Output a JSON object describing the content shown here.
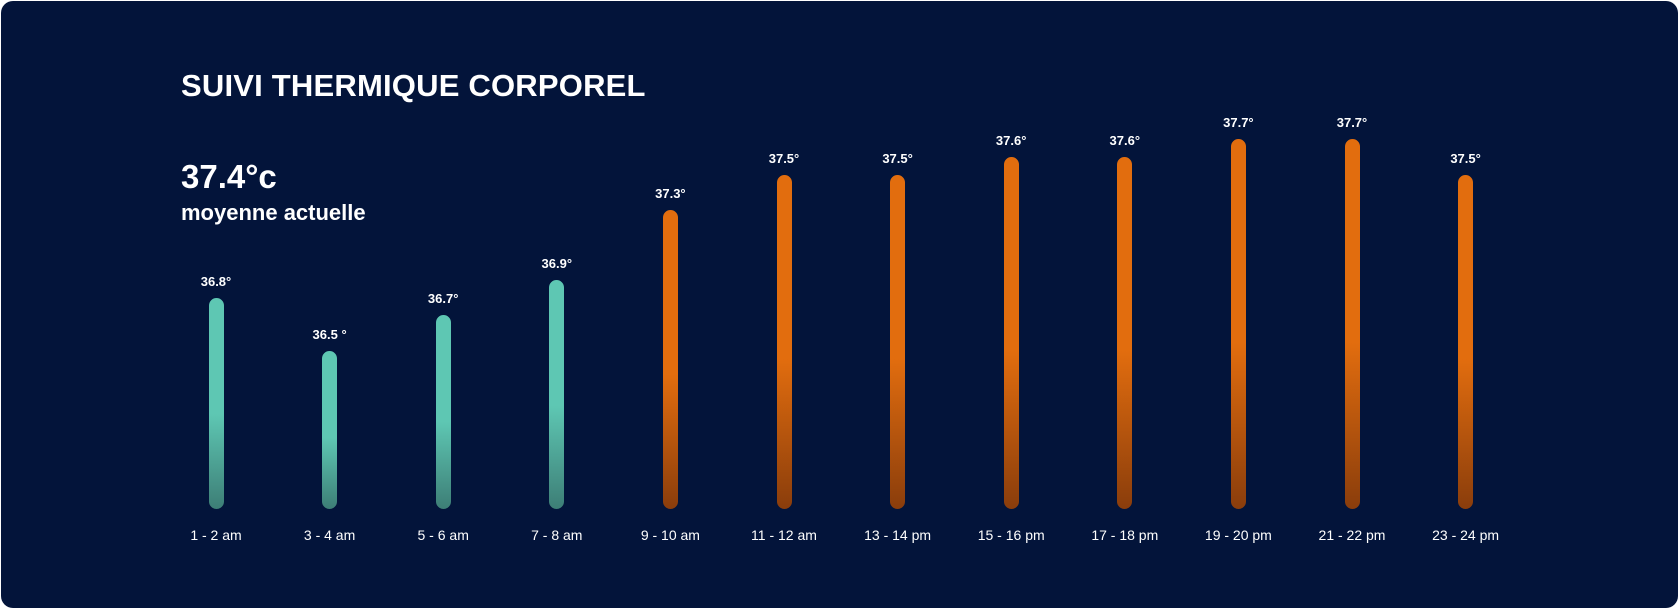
{
  "header": {
    "title": "SUIVI THERMIQUE CORPOREL",
    "average_value": "37.4°c",
    "average_label": "moyenne actuelle"
  },
  "colors": {
    "background": "#03143a",
    "cool": "#5ec7b3",
    "warm": "#e26d0e"
  },
  "chart_data": {
    "type": "bar",
    "title": "SUIVI THERMIQUE CORPOREL",
    "xlabel": "",
    "ylabel": "",
    "ylim": [
      35.6,
      37.7
    ],
    "grid": false,
    "categories": [
      "1 - 2 am",
      "3 - 4 am",
      "5 - 6 am",
      "7 - 8 am",
      "9 - 10 am",
      "11 - 12 am",
      "13 - 14 pm",
      "15 - 16 pm",
      "17 - 18 pm",
      "19 - 20 pm",
      "21 - 22 pm",
      "23 - 24 pm"
    ],
    "values": [
      36.8,
      36.5,
      36.7,
      36.9,
      37.3,
      37.5,
      37.5,
      37.6,
      37.6,
      37.7,
      37.7,
      37.5
    ],
    "value_labels": [
      "36.8°",
      "36.5 °",
      "36.7°",
      "36.9°",
      "37.3°",
      "37.5°",
      "37.5°",
      "37.6°",
      "37.6°",
      "37.7°",
      "37.7°",
      "37.5°"
    ],
    "series_style": [
      "cool",
      "cool",
      "cool",
      "cool",
      "warm",
      "warm",
      "warm",
      "warm",
      "warm",
      "warm",
      "warm",
      "warm"
    ]
  }
}
